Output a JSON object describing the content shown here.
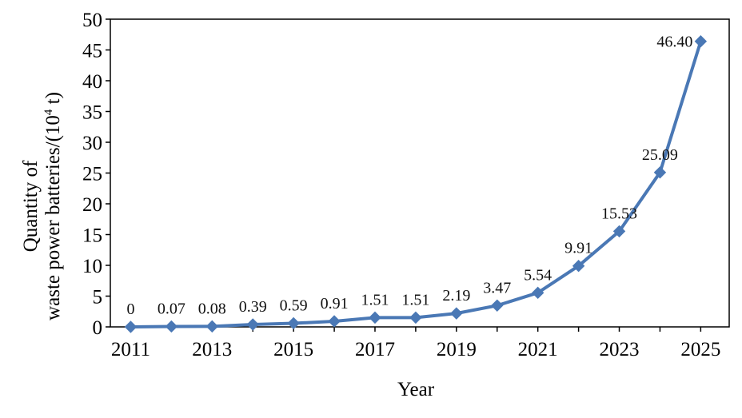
{
  "chart_data": {
    "type": "line",
    "x": [
      2011,
      2012,
      2013,
      2014,
      2015,
      2016,
      2017,
      2018,
      2019,
      2020,
      2021,
      2022,
      2023,
      2024,
      2025
    ],
    "x_tick_labels": [
      "2011",
      "2013",
      "2015",
      "2017",
      "2019",
      "2021",
      "2023",
      "2025"
    ],
    "series": [
      {
        "values": [
          0,
          0.07,
          0.08,
          0.39,
          0.59,
          0.91,
          1.51,
          1.51,
          2.19,
          3.47,
          5.54,
          9.91,
          15.53,
          25.09,
          46.4
        ],
        "data_labels": [
          "0",
          "0.07",
          "0.08",
          "0.39",
          "0.59",
          "0.91",
          "1.51",
          "1.51",
          "2.19",
          "3.47",
          "5.54",
          "9.91",
          "15.53",
          "25.09",
          "46.40"
        ],
        "color": "#4a78b5",
        "marker": "diamond"
      }
    ],
    "xlabel": "Year",
    "ylabel_line1": "Quantity of",
    "ylabel_line2_prefix": "waste power batteries/(10",
    "ylabel_superscript": "4",
    "ylabel_line2_suffix": " t)",
    "ylim": [
      0,
      50
    ],
    "y_ticks": [
      0,
      5,
      10,
      15,
      20,
      25,
      30,
      35,
      40,
      45,
      50
    ],
    "grid": false
  }
}
